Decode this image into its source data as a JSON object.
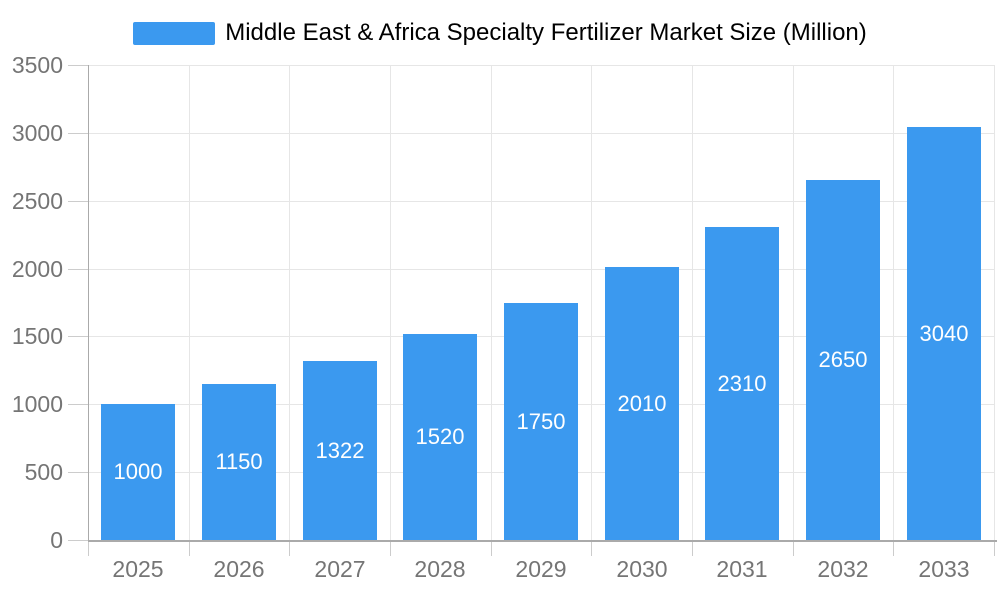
{
  "chart_data": {
    "type": "bar",
    "title": "Middle East & Africa Specialty Fertilizer Market Size (Million)",
    "categories": [
      "2025",
      "2026",
      "2027",
      "2028",
      "2029",
      "2030",
      "2031",
      "2032",
      "2033"
    ],
    "values": [
      1000,
      1150,
      1322,
      1520,
      1750,
      2010,
      2310,
      2650,
      3040
    ],
    "xlabel": "",
    "ylabel": "",
    "ylim": [
      0,
      3500
    ],
    "ytick_step": 500,
    "grid": true,
    "legend_position": "top-center",
    "bar_labels_visible": true,
    "colors": {
      "bar": "#3B99EF",
      "bar_label": "#ffffff",
      "grid_line": "#e6e6e6",
      "axis_line": "#aaaaaa",
      "tick": "#cccccc",
      "text": "#757575",
      "background": "#ffffff"
    }
  }
}
